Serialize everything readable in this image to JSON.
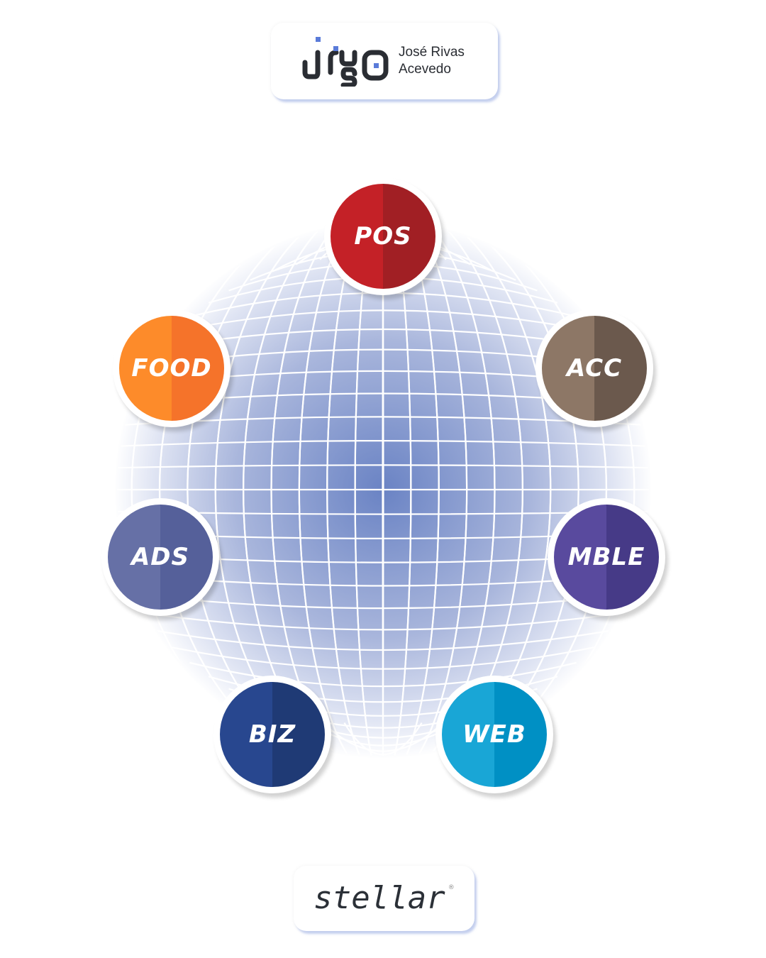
{
  "header_logo": {
    "mark": "jrisa",
    "name_line1": "José Rivas",
    "name_line2": "Acevedo"
  },
  "nodes": [
    {
      "label": "POS",
      "colors": [
        "#c42127",
        "#a11f24"
      ]
    },
    {
      "label": "ACC",
      "colors": [
        "#8d7766",
        "#6b594d"
      ]
    },
    {
      "label": "MBLE",
      "colors": [
        "#594a9e",
        "#463a87"
      ]
    },
    {
      "label": "WEB",
      "colors": [
        "#19a6d6",
        "#0090c4"
      ]
    },
    {
      "label": "BIZ",
      "colors": [
        "#28478f",
        "#1f3a75"
      ]
    },
    {
      "label": "ADS",
      "colors": [
        "#6670a6",
        "#55609a"
      ]
    },
    {
      "label": "FOOD",
      "colors": [
        "#fd8b2a",
        "#f5732a"
      ]
    }
  ],
  "footer_logo": {
    "text": "stellar",
    "mark": "®"
  },
  "accent_color": "#5a7bd9"
}
